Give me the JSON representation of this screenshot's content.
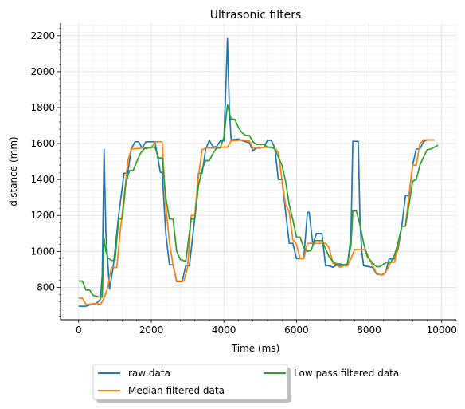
{
  "chart_data": {
    "type": "line",
    "title": "Ultrasonic filters",
    "xlabel": "Time (ms)",
    "ylabel": "distance (mm)",
    "xlim": [
      -500,
      10400
    ],
    "ylim": [
      620,
      2270
    ],
    "x_ticks": [
      0,
      2000,
      4000,
      6000,
      8000,
      10000
    ],
    "y_ticks": [
      800,
      1000,
      1200,
      1400,
      1600,
      1800,
      2000,
      2200
    ],
    "grid": true,
    "minor_grid": true,
    "legend_placement": "below plot, two columns",
    "series": [
      {
        "name": "raw data",
        "color": "#1f77b4",
        "points": [
          [
            0,
            695
          ],
          [
            200,
            695
          ],
          [
            350,
            705
          ],
          [
            500,
            712
          ],
          [
            600,
            735
          ],
          [
            650,
            870
          ],
          [
            700,
            1568
          ],
          [
            750,
            1100
          ],
          [
            850,
            790
          ],
          [
            950,
            910
          ],
          [
            1100,
            1200
          ],
          [
            1250,
            1435
          ],
          [
            1350,
            1435
          ],
          [
            1450,
            1570
          ],
          [
            1550,
            1610
          ],
          [
            1650,
            1610
          ],
          [
            1750,
            1575
          ],
          [
            1850,
            1610
          ],
          [
            2000,
            1610
          ],
          [
            2100,
            1610
          ],
          [
            2250,
            1440
          ],
          [
            2300,
            1440
          ],
          [
            2400,
            1100
          ],
          [
            2500,
            925
          ],
          [
            2600,
            925
          ],
          [
            2700,
            832
          ],
          [
            2850,
            832
          ],
          [
            2950,
            920
          ],
          [
            3050,
            920
          ],
          [
            3200,
            1190
          ],
          [
            3300,
            1435
          ],
          [
            3400,
            1435
          ],
          [
            3500,
            1570
          ],
          [
            3600,
            1618
          ],
          [
            3700,
            1582
          ],
          [
            3800,
            1582
          ],
          [
            3900,
            1615
          ],
          [
            4000,
            1615
          ],
          [
            4050,
            1900
          ],
          [
            4100,
            2185
          ],
          [
            4150,
            1800
          ],
          [
            4200,
            1620
          ],
          [
            4400,
            1625
          ],
          [
            4600,
            1610
          ],
          [
            4700,
            1605
          ],
          [
            4800,
            1560
          ],
          [
            4900,
            1575
          ],
          [
            5000,
            1575
          ],
          [
            5100,
            1580
          ],
          [
            5200,
            1618
          ],
          [
            5300,
            1618
          ],
          [
            5400,
            1580
          ],
          [
            5500,
            1400
          ],
          [
            5600,
            1400
          ],
          [
            5700,
            1220
          ],
          [
            5800,
            1045
          ],
          [
            5900,
            1045
          ],
          [
            6000,
            960
          ],
          [
            6200,
            960
          ],
          [
            6300,
            1218
          ],
          [
            6350,
            1218
          ],
          [
            6450,
            1040
          ],
          [
            6550,
            1100
          ],
          [
            6700,
            1100
          ],
          [
            6800,
            920
          ],
          [
            6900,
            920
          ],
          [
            7000,
            912
          ],
          [
            7100,
            922
          ],
          [
            7300,
            922
          ],
          [
            7400,
            920
          ],
          [
            7500,
            1085
          ],
          [
            7550,
            1612
          ],
          [
            7700,
            1612
          ],
          [
            7750,
            1165
          ],
          [
            7800,
            1000
          ],
          [
            7850,
            920
          ],
          [
            8000,
            915
          ],
          [
            8100,
            910
          ],
          [
            8200,
            875
          ],
          [
            8350,
            870
          ],
          [
            8450,
            880
          ],
          [
            8550,
            958
          ],
          [
            8700,
            958
          ],
          [
            8800,
            1015
          ],
          [
            8900,
            1140
          ],
          [
            9000,
            1310
          ],
          [
            9100,
            1310
          ],
          [
            9200,
            1480
          ],
          [
            9300,
            1570
          ],
          [
            9400,
            1570
          ],
          [
            9500,
            1610
          ],
          [
            9600,
            1620
          ],
          [
            9800,
            1620
          ]
        ]
      },
      {
        "name": "Median filtered data",
        "color": "#ff7f0e",
        "points": [
          [
            0,
            740
          ],
          [
            100,
            740
          ],
          [
            200,
            705
          ],
          [
            350,
            708
          ],
          [
            500,
            710
          ],
          [
            600,
            705
          ],
          [
            700,
            740
          ],
          [
            800,
            800
          ],
          [
            900,
            910
          ],
          [
            1050,
            910
          ],
          [
            1150,
            1120
          ],
          [
            1250,
            1300
          ],
          [
            1350,
            1500
          ],
          [
            1450,
            1570
          ],
          [
            1800,
            1575
          ],
          [
            2000,
            1575
          ],
          [
            2100,
            1610
          ],
          [
            2300,
            1610
          ],
          [
            2400,
            1250
          ],
          [
            2500,
            1050
          ],
          [
            2600,
            925
          ],
          [
            2700,
            835
          ],
          [
            2900,
            835
          ],
          [
            3000,
            910
          ],
          [
            3100,
            1200
          ],
          [
            3200,
            1200
          ],
          [
            3300,
            1420
          ],
          [
            3400,
            1565
          ],
          [
            3500,
            1575
          ],
          [
            3800,
            1575
          ],
          [
            3900,
            1580
          ],
          [
            4100,
            1580
          ],
          [
            4200,
            1615
          ],
          [
            4500,
            1620
          ],
          [
            4700,
            1615
          ],
          [
            4800,
            1575
          ],
          [
            5200,
            1580
          ],
          [
            5400,
            1575
          ],
          [
            5500,
            1550
          ],
          [
            5600,
            1400
          ],
          [
            5700,
            1260
          ],
          [
            5800,
            1220
          ],
          [
            5900,
            1065
          ],
          [
            6000,
            1040
          ],
          [
            6100,
            960
          ],
          [
            6200,
            960
          ],
          [
            6300,
            1045
          ],
          [
            6350,
            1045
          ],
          [
            6500,
            1045
          ],
          [
            6800,
            1045
          ],
          [
            6900,
            1020
          ],
          [
            7000,
            935
          ],
          [
            7200,
            912
          ],
          [
            7300,
            920
          ],
          [
            7400,
            920
          ],
          [
            7500,
            960
          ],
          [
            7600,
            1010
          ],
          [
            7700,
            1010
          ],
          [
            7900,
            1010
          ],
          [
            8000,
            960
          ],
          [
            8100,
            920
          ],
          [
            8200,
            880
          ],
          [
            8300,
            872
          ],
          [
            8400,
            870
          ],
          [
            8500,
            900
          ],
          [
            8600,
            940
          ],
          [
            8700,
            940
          ],
          [
            8900,
            1140
          ],
          [
            9000,
            1140
          ],
          [
            9100,
            1320
          ],
          [
            9200,
            1480
          ],
          [
            9300,
            1480
          ],
          [
            9400,
            1600
          ],
          [
            9500,
            1620
          ],
          [
            9700,
            1620
          ],
          [
            9800,
            1620
          ]
        ]
      },
      {
        "name": "Low pass filtered data",
        "color": "#2ca02c",
        "points": [
          [
            0,
            835
          ],
          [
            100,
            835
          ],
          [
            200,
            785
          ],
          [
            300,
            785
          ],
          [
            400,
            755
          ],
          [
            600,
            745
          ],
          [
            650,
            745
          ],
          [
            700,
            1075
          ],
          [
            750,
            1000
          ],
          [
            800,
            965
          ],
          [
            900,
            950
          ],
          [
            1000,
            950
          ],
          [
            1100,
            1180
          ],
          [
            1200,
            1180
          ],
          [
            1300,
            1380
          ],
          [
            1400,
            1450
          ],
          [
            1500,
            1450
          ],
          [
            1600,
            1500
          ],
          [
            1700,
            1545
          ],
          [
            1800,
            1570
          ],
          [
            2000,
            1580
          ],
          [
            2100,
            1580
          ],
          [
            2200,
            1520
          ],
          [
            2300,
            1520
          ],
          [
            2400,
            1300
          ],
          [
            2500,
            1180
          ],
          [
            2600,
            1180
          ],
          [
            2700,
            1000
          ],
          [
            2800,
            955
          ],
          [
            2950,
            945
          ],
          [
            3100,
            1180
          ],
          [
            3200,
            1180
          ],
          [
            3300,
            1365
          ],
          [
            3400,
            1455
          ],
          [
            3500,
            1505
          ],
          [
            3600,
            1505
          ],
          [
            3700,
            1545
          ],
          [
            3800,
            1575
          ],
          [
            3900,
            1575
          ],
          [
            4000,
            1635
          ],
          [
            4100,
            1815
          ],
          [
            4200,
            1735
          ],
          [
            4300,
            1735
          ],
          [
            4400,
            1690
          ],
          [
            4500,
            1660
          ],
          [
            4600,
            1645
          ],
          [
            4700,
            1645
          ],
          [
            4800,
            1610
          ],
          [
            4900,
            1595
          ],
          [
            5000,
            1595
          ],
          [
            5100,
            1595
          ],
          [
            5200,
            1580
          ],
          [
            5300,
            1580
          ],
          [
            5400,
            1570
          ],
          [
            5500,
            1525
          ],
          [
            5600,
            1480
          ],
          [
            5700,
            1390
          ],
          [
            5800,
            1260
          ],
          [
            5900,
            1175
          ],
          [
            6000,
            1080
          ],
          [
            6100,
            1080
          ],
          [
            6200,
            1020
          ],
          [
            6300,
            1000
          ],
          [
            6400,
            1005
          ],
          [
            6500,
            1060
          ],
          [
            6600,
            1060
          ],
          [
            6700,
            1060
          ],
          [
            6800,
            1015
          ],
          [
            6900,
            970
          ],
          [
            7000,
            945
          ],
          [
            7100,
            930
          ],
          [
            7200,
            930
          ],
          [
            7300,
            925
          ],
          [
            7400,
            930
          ],
          [
            7500,
            1035
          ],
          [
            7550,
            1225
          ],
          [
            7650,
            1225
          ],
          [
            7750,
            1145
          ],
          [
            7850,
            1045
          ],
          [
            7950,
            970
          ],
          [
            8100,
            935
          ],
          [
            8200,
            915
          ],
          [
            8300,
            915
          ],
          [
            8400,
            930
          ],
          [
            8500,
            940
          ],
          [
            8600,
            940
          ],
          [
            8700,
            980
          ],
          [
            8800,
            1050
          ],
          [
            8900,
            1140
          ],
          [
            9000,
            1140
          ],
          [
            9100,
            1260
          ],
          [
            9200,
            1390
          ],
          [
            9300,
            1400
          ],
          [
            9400,
            1480
          ],
          [
            9500,
            1525
          ],
          [
            9600,
            1565
          ],
          [
            9700,
            1570
          ],
          [
            9800,
            1580
          ],
          [
            9900,
            1590
          ]
        ]
      }
    ]
  }
}
